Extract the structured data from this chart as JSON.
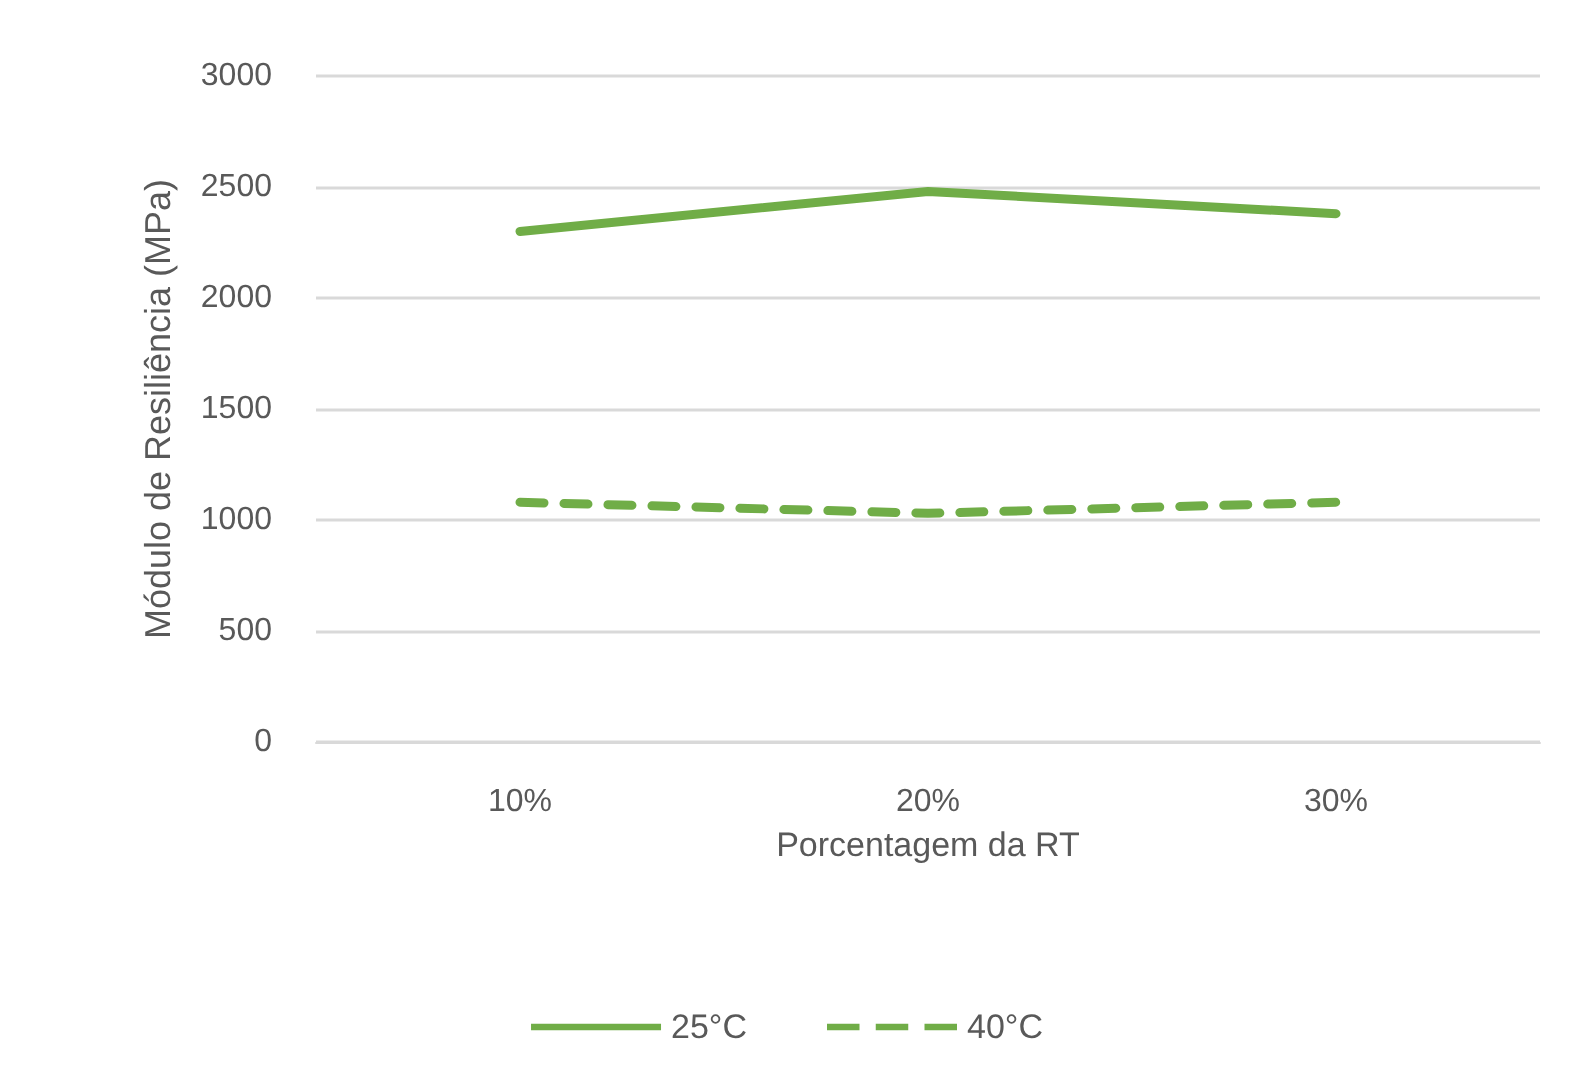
{
  "chart_data": {
    "type": "line",
    "xlabel": "Porcentagem da RT",
    "ylabel": "Módulo de Resiliência (MPa)",
    "categories": [
      "10%",
      "20%",
      "30%"
    ],
    "series": [
      {
        "name": "25°C",
        "color": "#70ad47",
        "line_style": "solid",
        "values": [
          2300,
          2480,
          2380
        ]
      },
      {
        "name": "40°C",
        "color": "#70ad47",
        "line_style": "dashed",
        "values": [
          1080,
          1030,
          1080
        ]
      }
    ],
    "ylim": [
      0,
      3000
    ],
    "yticks": [
      0,
      500,
      1000,
      1500,
      2000,
      2500,
      3000
    ],
    "grid": "y",
    "legend": "bottom",
    "marker": "none"
  }
}
